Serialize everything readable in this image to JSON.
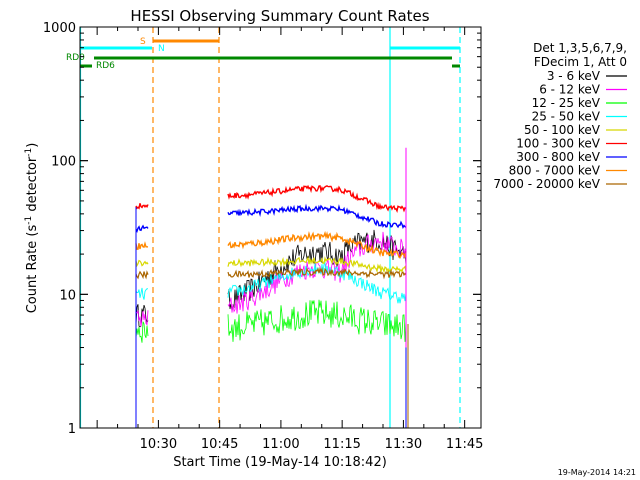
{
  "chart_data": {
    "type": "line",
    "title": "HESSI Observing Summary Count Rates",
    "xlabel": "Start Time (19-May-14 10:18:42)",
    "ylabel_main": "Count Rate (s",
    "ylabel_sup1": "-1",
    "ylabel_mid": " detector",
    "ylabel_sup2": "-1",
    "ylabel_end": ")",
    "ylim": [
      1,
      1000
    ],
    "yscale": "log",
    "xlim_minutes": [
      10.18,
      11.8167
    ],
    "x_ticks": [
      {
        "label": "10:30",
        "t": 10.5
      },
      {
        "label": "10:45",
        "t": 10.75
      },
      {
        "label": "11:00",
        "t": 11.0
      },
      {
        "label": "11:15",
        "t": 11.25
      },
      {
        "label": "11:30",
        "t": 11.5
      },
      {
        "label": "11:45",
        "t": 11.75
      }
    ],
    "y_ticks": [
      {
        "label": "1",
        "v": 1
      },
      {
        "label": "10",
        "v": 10
      },
      {
        "label": "100",
        "v": 100
      },
      {
        "label": "1000",
        "v": 1000
      }
    ],
    "legend_header": [
      "Det 1,3,5,6,7,9,",
      "FDecim 1, Att 0"
    ],
    "legend_placement": "right",
    "series": [
      {
        "name": "3 - 6 keV",
        "color": "#000000"
      },
      {
        "name": "6 - 12 keV",
        "color": "#ff00ff"
      },
      {
        "name": "12 - 25 keV",
        "color": "#00ff00"
      },
      {
        "name": "25 - 50 keV",
        "color": "#00ffff"
      },
      {
        "name": "50 - 100 keV",
        "color": "#d8d800"
      },
      {
        "name": "100 - 300 keV",
        "color": "#ff0000"
      },
      {
        "name": "300 - 800 keV",
        "color": "#0000ff"
      },
      {
        "name": "800 - 7000 keV",
        "color": "#ff8800"
      },
      {
        "name": "7000 - 20000 keV",
        "color": "#aa6600"
      }
    ],
    "flags": [
      {
        "label": "S",
        "color": "#ff8800"
      },
      {
        "label": "N",
        "color": "#00ffff"
      },
      {
        "label": "RD0",
        "color": "#008800"
      },
      {
        "label": "RD6",
        "color": "#008800"
      }
    ]
  },
  "footer": {
    "date": "19-May-2014 14:21"
  }
}
